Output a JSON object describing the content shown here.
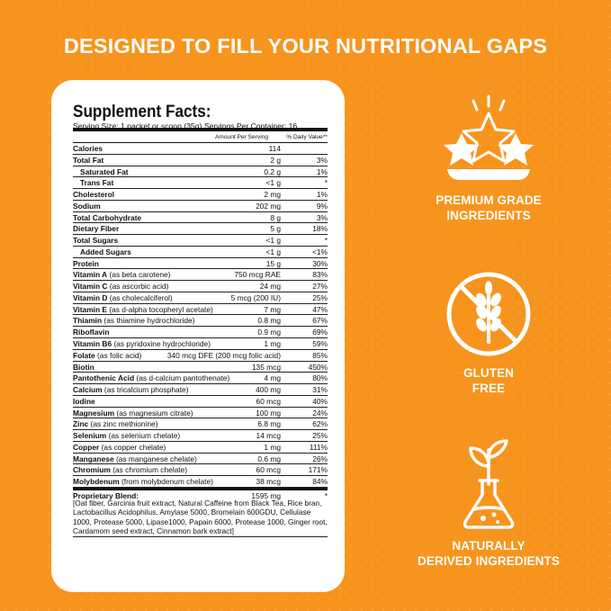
{
  "headline": "DESIGNED TO FILL YOUR NUTRITIONAL GAPS",
  "facts": {
    "title": "Supplement Facts:",
    "serving_size": "Serving Size: 1 packet or scoop (35g)",
    "servings_per_container": "Servings Per Container: 16",
    "col_amount": "Amount Per Serving",
    "col_dv": "% Daily Value**",
    "rows": [
      {
        "name": "Calories",
        "extra": "",
        "amount": "114",
        "dv": "",
        "indent": false,
        "bold": true
      },
      {
        "name": "Total Fat",
        "extra": "",
        "amount": "2 g",
        "dv": "3%",
        "indent": false,
        "bold": true
      },
      {
        "name": "Saturated Fat",
        "extra": "",
        "amount": "0.2 g",
        "dv": "1%",
        "indent": true,
        "bold": true
      },
      {
        "name": "Trans Fat",
        "extra": "",
        "amount": "<1 g",
        "dv": "*",
        "indent": true,
        "bold": true
      },
      {
        "name": "Cholesterol",
        "extra": "",
        "amount": "2 mg",
        "dv": "1%",
        "indent": false,
        "bold": true
      },
      {
        "name": "Sodium",
        "extra": "",
        "amount": "202 mg",
        "dv": "9%",
        "indent": false,
        "bold": true
      },
      {
        "name": "Total Carbohydrate",
        "extra": "",
        "amount": "8 g",
        "dv": "3%",
        "indent": false,
        "bold": true
      },
      {
        "name": "Dietary Fiber",
        "extra": "",
        "amount": "5 g",
        "dv": "18%",
        "indent": false,
        "bold": true
      },
      {
        "name": "Total Sugars",
        "extra": "",
        "amount": "<1 g",
        "dv": "*",
        "indent": false,
        "bold": true
      },
      {
        "name": "Added Sugars",
        "extra": "",
        "amount": "<1 g",
        "dv": "<1%",
        "indent": true,
        "bold": true
      },
      {
        "name": "Protein",
        "extra": "",
        "amount": "15 g",
        "dv": "30%",
        "indent": false,
        "bold": true
      },
      {
        "name": "Vitamin A",
        "extra": " (as beta carotene)",
        "amount": "750 mcg RAE",
        "dv": "83%",
        "indent": false,
        "bold": true
      },
      {
        "name": "Vitamin C",
        "extra": " (as ascorbic acid)",
        "amount": "24 mg",
        "dv": "27%",
        "indent": false,
        "bold": true
      },
      {
        "name": "Vitamin D",
        "extra": " (as cholecalciferol)",
        "amount": "5 mcg (200 IU)",
        "dv": "25%",
        "indent": false,
        "bold": true
      },
      {
        "name": "Vitamin E",
        "extra": " (as d-alpha tocopheryl acetate)",
        "amount": "7 mg",
        "dv": "47%",
        "indent": false,
        "bold": true
      },
      {
        "name": "Thiamin",
        "extra": " (as thiamine hydrochloride)",
        "amount": "0.8 mg",
        "dv": "67%",
        "indent": false,
        "bold": true
      },
      {
        "name": "Riboflavin",
        "extra": "",
        "amount": "0.9 mg",
        "dv": "69%",
        "indent": false,
        "bold": true
      },
      {
        "name": "Vitamin B6",
        "extra": " (as pyridoxine hydrochloride)",
        "amount": "1 mg",
        "dv": "59%",
        "indent": false,
        "bold": true
      },
      {
        "name": "Folate",
        "extra": " (as folic acid)",
        "amount": "340 mcg DFE (200 mcg folic acid)",
        "dv": "85%",
        "indent": false,
        "bold": true
      },
      {
        "name": "Biotin",
        "extra": "",
        "amount": "135 mcg",
        "dv": "450%",
        "indent": false,
        "bold": true
      },
      {
        "name": "Pantothenic Acid",
        "extra": " (as d-calcium pantothenate)",
        "amount": "4 mg",
        "dv": "80%",
        "indent": false,
        "bold": true
      },
      {
        "name": "Calcium",
        "extra": " (as tricalcium phosphate)",
        "amount": "400 mg",
        "dv": "31%",
        "indent": false,
        "bold": true
      },
      {
        "name": "Iodine",
        "extra": "",
        "amount": "60 mcg",
        "dv": "40%",
        "indent": false,
        "bold": true
      },
      {
        "name": "Magnesium",
        "extra": " (as magnesium citrate)",
        "amount": "100 mg",
        "dv": "24%",
        "indent": false,
        "bold": true
      },
      {
        "name": "Zinc",
        "extra": " (as zinc methionine)",
        "amount": "6.8 mg",
        "dv": "62%",
        "indent": false,
        "bold": true
      },
      {
        "name": "Selenium",
        "extra": " (as selenium chelate)",
        "amount": "14 mcg",
        "dv": "25%",
        "indent": false,
        "bold": true
      },
      {
        "name": "Copper",
        "extra": " (as copper chelate)",
        "amount": "1 mg",
        "dv": "111%",
        "indent": false,
        "bold": true
      },
      {
        "name": "Manganese",
        "extra": " (as manganese chelate)",
        "amount": "0.6 mg",
        "dv": "26%",
        "indent": false,
        "bold": true
      },
      {
        "name": "Chromium",
        "extra": " (as chromium chelate)",
        "amount": "60 mcg",
        "dv": "171%",
        "indent": false,
        "bold": true
      },
      {
        "name": "Molybdenum",
        "extra": " (from molybdenum chelate)",
        "amount": "38 mcg",
        "dv": "84%",
        "indent": false,
        "bold": true
      }
    ],
    "blend_name": "Proprietary Blend:",
    "blend_amount": "1595 mg",
    "blend_dv": "*",
    "blend_ingredients": "[Oat fiber, Garcinia fruit extract, Natural Caffeine from Black Tea, Rice bran, Lactobacillus Acidophilus, Amylase 5000, Bromelain 600GDU, Cellulase 1000, Protease 5000, Lipase1000, Papain 6000, Protease 1000, Ginger root, Cardamom seed extract, Cinnamon bark extract]"
  },
  "badges": [
    {
      "icon": "stars-icon",
      "line1": "PREMIUM GRADE",
      "line2": "INGREDIENTS"
    },
    {
      "icon": "gluten-free-icon",
      "line1": "GLUTEN",
      "line2": "FREE"
    },
    {
      "icon": "plant-flask-icon",
      "line1": "NATURALLY",
      "line2": "DERIVED INGREDIENTS"
    }
  ],
  "colors": {
    "background": "#F7941D",
    "panel": "#FFFFFF",
    "text_on_bg": "#FFFFFF"
  }
}
